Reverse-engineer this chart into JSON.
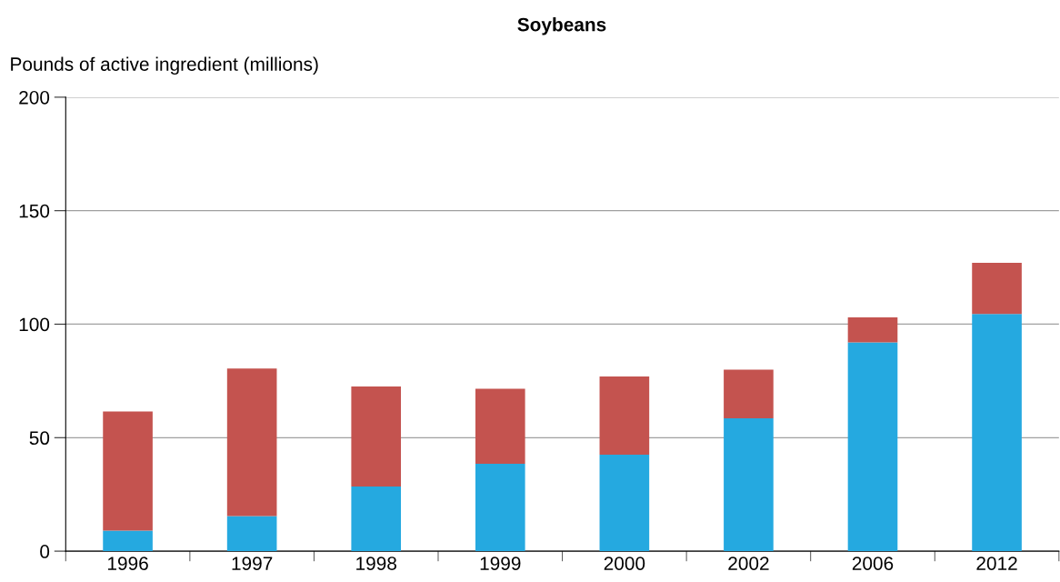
{
  "chart_data": {
    "type": "bar",
    "title": "Soybeans",
    "ylabel": "Pounds of active ingredient (millions)",
    "categories": [
      "1996",
      "1997",
      "1998",
      "1999",
      "2000",
      "2002",
      "2006",
      "2012"
    ],
    "stacked": true,
    "series": [
      {
        "color": "#25a9e0",
        "values": [
          9,
          15.5,
          28.5,
          38.5,
          42.5,
          58.5,
          92,
          104.5
        ]
      },
      {
        "color": "#c4534f",
        "values": [
          52.5,
          65,
          44,
          33,
          34.5,
          21.5,
          11,
          22.5
        ]
      }
    ],
    "ylim": [
      0,
      200
    ],
    "yticks": [
      0,
      50,
      100,
      150,
      200
    ],
    "grid": "y"
  }
}
